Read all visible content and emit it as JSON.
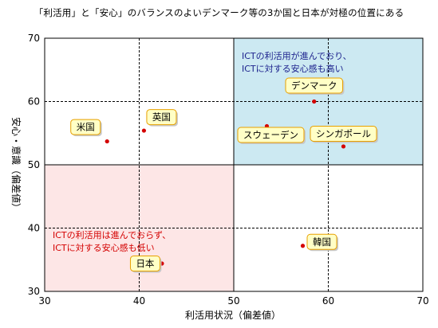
{
  "chart_data": {
    "type": "scatter",
    "title": "「利活用」と「安心」のバランスのよいデンマーク等の3か国と日本が対極の位置にある",
    "xlabel": "利活用状況（偏差値）",
    "ylabel": "安心・意識（偏差値）",
    "xlim": [
      30,
      70
    ],
    "ylim": [
      30,
      70
    ],
    "xticks": [
      "30",
      "40",
      "50",
      "60",
      "70"
    ],
    "yticks": [
      "30",
      "40",
      "50",
      "60",
      "70"
    ],
    "grid": true,
    "quadrant_divider": {
      "x": 50,
      "y": 50
    },
    "quadrants": [
      {
        "name": "high",
        "color": "#cce9f2",
        "text_color": "#1a1f8c",
        "lines": [
          "ICTの利活用が進んでおり、",
          "ICTに対する安心感も高い"
        ]
      },
      {
        "name": "low",
        "color": "#fde6e6",
        "text_color": "#d40000",
        "lines": [
          "ICTの利活用は進んでおらず、",
          "ICTに対する安心感も低い"
        ]
      }
    ],
    "points": [
      {
        "label": "デンマーク",
        "x": 58.5,
        "y": 60.0
      },
      {
        "label": "スウェーデン",
        "x": 53.5,
        "y": 56.1
      },
      {
        "label": "シンガポール",
        "x": 61.6,
        "y": 52.9
      },
      {
        "label": "英国",
        "x": 40.5,
        "y": 55.4
      },
      {
        "label": "米国",
        "x": 36.6,
        "y": 53.7
      },
      {
        "label": "韓国",
        "x": 57.3,
        "y": 37.2
      },
      {
        "label": "日本",
        "x": 42.4,
        "y": 34.4
      }
    ],
    "point_color": "#d40000",
    "label_box_color": "#ffffc6",
    "label_border_color": "#e8a000"
  }
}
